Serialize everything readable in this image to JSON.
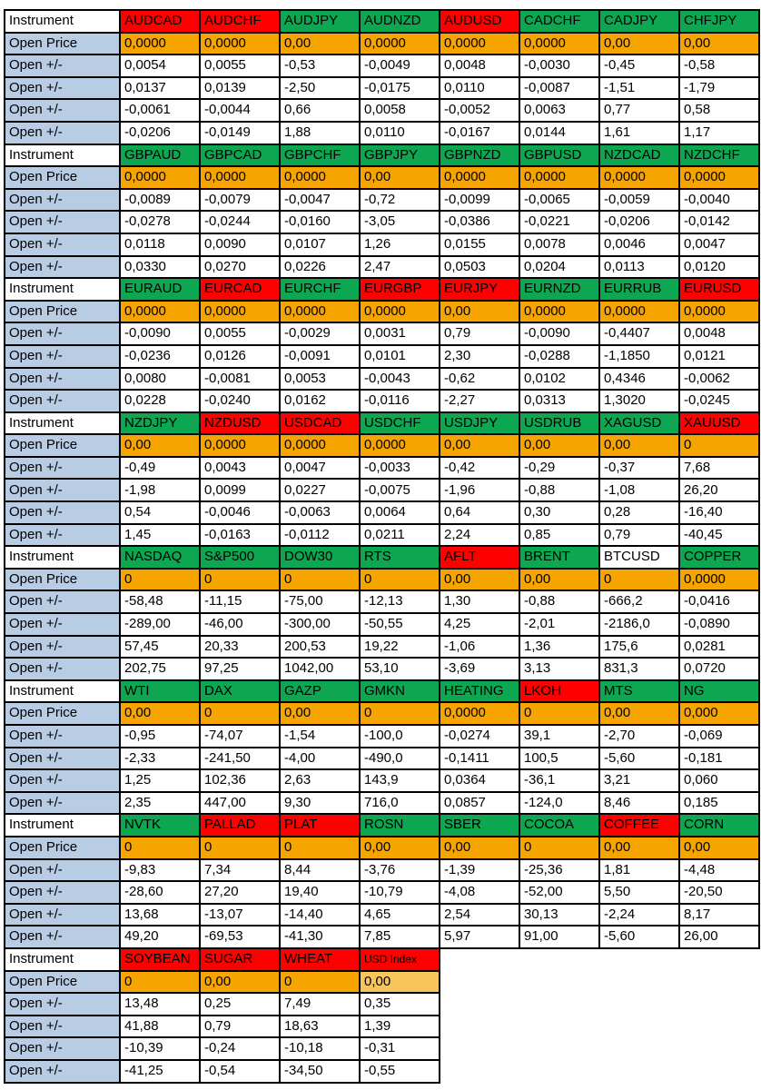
{
  "labels": {
    "instrument": "Instrument",
    "open_price": "Open Price",
    "open_delta": "Open +/-"
  },
  "colors": {
    "header_green": "#0CA750",
    "header_red": "#FF0000",
    "header_white": "#FFFFFF",
    "open_price_orange": "#F5A400",
    "open_price_light_orange": "#F8C45C",
    "label_blue": "#B8CCE4",
    "gridline_black": "#000000"
  },
  "blocks": [
    {
      "columns": [
        {
          "name": "AUDCAD",
          "color": "red"
        },
        {
          "name": "AUDCHF",
          "color": "red"
        },
        {
          "name": "AUDJPY",
          "color": "green"
        },
        {
          "name": "AUDNZD",
          "color": "green"
        },
        {
          "name": "AUDUSD",
          "color": "red"
        },
        {
          "name": "CADCHF",
          "color": "green"
        },
        {
          "name": "CADJPY",
          "color": "green"
        },
        {
          "name": "CHFJPY",
          "color": "green"
        }
      ],
      "open_price": [
        "0,0000",
        "0,0000",
        "0,00",
        "0,0000",
        "0,0000",
        "0,0000",
        "0,00",
        "0,00"
      ],
      "deltas": [
        [
          "0,0054",
          "0,0055",
          "-0,53",
          "-0,0049",
          "0,0048",
          "-0,0030",
          "-0,45",
          "-0,58"
        ],
        [
          "0,0137",
          "0,0139",
          "-2,50",
          "-0,0175",
          "0,0110",
          "-0,0087",
          "-1,51",
          "-1,79"
        ],
        [
          "-0,0061",
          "-0,0044",
          "0,66",
          "0,0058",
          "-0,0052",
          "0,0063",
          "0,77",
          "0,58"
        ],
        [
          "-0,0206",
          "-0,0149",
          "1,88",
          "0,0110",
          "-0,0167",
          "0,0144",
          "1,61",
          "1,17"
        ]
      ]
    },
    {
      "columns": [
        {
          "name": "GBPAUD",
          "color": "green"
        },
        {
          "name": "GBPCAD",
          "color": "green"
        },
        {
          "name": "GBPCHF",
          "color": "green"
        },
        {
          "name": "GBPJPY",
          "color": "green"
        },
        {
          "name": "GBPNZD",
          "color": "green"
        },
        {
          "name": "GBPUSD",
          "color": "green"
        },
        {
          "name": "NZDCAD",
          "color": "green"
        },
        {
          "name": "NZDCHF",
          "color": "green"
        }
      ],
      "open_price": [
        "0,0000",
        "0,0000",
        "0,0000",
        "0,00",
        "0,0000",
        "0,0000",
        "0,0000",
        "0,0000"
      ],
      "deltas": [
        [
          "-0,0089",
          "-0,0079",
          "-0,0047",
          "-0,72",
          "-0,0099",
          "-0,0065",
          "-0,0059",
          "-0,0040"
        ],
        [
          "-0,0278",
          "-0,0244",
          "-0,0160",
          "-3,05",
          "-0,0386",
          "-0,0221",
          "-0,0206",
          "-0,0142"
        ],
        [
          "0,0118",
          "0,0090",
          "0,0107",
          "1,26",
          "0,0155",
          "0,0078",
          "0,0046",
          "0,0047"
        ],
        [
          "0,0330",
          "0,0270",
          "0,0226",
          "2,47",
          "0,0503",
          "0,0204",
          "0,0113",
          "0,0120"
        ]
      ]
    },
    {
      "columns": [
        {
          "name": "EURAUD",
          "color": "green"
        },
        {
          "name": "EURCAD",
          "color": "red"
        },
        {
          "name": "EURCHF",
          "color": "green"
        },
        {
          "name": "EURGBP",
          "color": "red"
        },
        {
          "name": "EURJPY",
          "color": "red"
        },
        {
          "name": "EURNZD",
          "color": "green"
        },
        {
          "name": "EURRUB",
          "color": "green"
        },
        {
          "name": "EURUSD",
          "color": "red"
        }
      ],
      "open_price": [
        "0,0000",
        "0,0000",
        "0,0000",
        "0,0000",
        "0,00",
        "0,0000",
        "0,0000",
        "0,0000"
      ],
      "deltas": [
        [
          "-0,0090",
          "0,0055",
          "-0,0029",
          "0,0031",
          "0,79",
          "-0,0090",
          "-0,4407",
          "0,0048"
        ],
        [
          "-0,0236",
          "0,0126",
          "-0,0091",
          "0,0101",
          "2,30",
          "-0,0288",
          "-1,1850",
          "0,0121"
        ],
        [
          "0,0080",
          "-0,0081",
          "0,0053",
          "-0,0043",
          "-0,62",
          "0,0102",
          "0,4346",
          "-0,0062"
        ],
        [
          "0,0228",
          "-0,0240",
          "0,0162",
          "-0,0116",
          "-2,27",
          "0,0313",
          "1,3020",
          "-0,0245"
        ]
      ]
    },
    {
      "columns": [
        {
          "name": "NZDJPY",
          "color": "green"
        },
        {
          "name": "NZDUSD",
          "color": "red"
        },
        {
          "name": "USDCAD",
          "color": "red"
        },
        {
          "name": "USDCHF",
          "color": "green"
        },
        {
          "name": "USDJPY",
          "color": "green"
        },
        {
          "name": "USDRUB",
          "color": "green"
        },
        {
          "name": "XAGUSD",
          "color": "green"
        },
        {
          "name": "XAUUSD",
          "color": "red"
        }
      ],
      "open_price": [
        "0,00",
        "0,0000",
        "0,0000",
        "0,0000",
        "0,00",
        "0,00",
        "0,00",
        "0"
      ],
      "deltas": [
        [
          "-0,49",
          "0,0043",
          "0,0047",
          "-0,0033",
          "-0,42",
          "-0,29",
          "-0,37",
          "7,68"
        ],
        [
          "-1,98",
          "0,0099",
          "0,0227",
          "-0,0075",
          "-1,96",
          "-0,88",
          "-1,08",
          "26,20"
        ],
        [
          "0,54",
          "-0,0046",
          "-0,0063",
          "0,0064",
          "0,64",
          "0,30",
          "0,28",
          "-16,40"
        ],
        [
          "1,45",
          "-0,0163",
          "-0,0112",
          "0,0211",
          "2,24",
          "0,85",
          "0,79",
          "-40,45"
        ]
      ]
    },
    {
      "columns": [
        {
          "name": "NASDAQ",
          "color": "green"
        },
        {
          "name": "S&P500",
          "color": "green"
        },
        {
          "name": "DOW30",
          "color": "green"
        },
        {
          "name": "RTS",
          "color": "green"
        },
        {
          "name": "AFLT",
          "color": "red"
        },
        {
          "name": "BRENT",
          "color": "green"
        },
        {
          "name": "BTCUSD",
          "color": "white"
        },
        {
          "name": "COPPER",
          "color": "green"
        }
      ],
      "open_price": [
        "0",
        "0",
        "0",
        "0",
        "0,00",
        "0,00",
        "0",
        "0,0000"
      ],
      "deltas": [
        [
          "-58,48",
          "-11,15",
          "-75,00",
          "-12,13",
          "1,30",
          "-0,88",
          "-666,2",
          "-0,0416"
        ],
        [
          "-289,00",
          "-46,00",
          "-300,00",
          "-50,55",
          "4,25",
          "-2,01",
          "-2186,0",
          "-0,0890"
        ],
        [
          "57,45",
          "20,33",
          "200,53",
          "19,22",
          "-1,06",
          "1,36",
          "175,6",
          "0,0281"
        ],
        [
          "202,75",
          "97,25",
          "1042,00",
          "53,10",
          "-3,69",
          "3,13",
          "831,3",
          "0,0720"
        ]
      ]
    },
    {
      "columns": [
        {
          "name": "WTI",
          "color": "green"
        },
        {
          "name": "DAX",
          "color": "green"
        },
        {
          "name": "GAZP",
          "color": "green"
        },
        {
          "name": "GMKN",
          "color": "green"
        },
        {
          "name": "HEATING",
          "color": "green"
        },
        {
          "name": "LKOH",
          "color": "red"
        },
        {
          "name": "MTS",
          "color": "green"
        },
        {
          "name": "NG",
          "color": "green"
        }
      ],
      "open_price": [
        "0,00",
        "0",
        "0,00",
        "0",
        "0,0000",
        "0",
        "0,00",
        "0,000"
      ],
      "deltas": [
        [
          "-0,95",
          "-74,07",
          "-1,54",
          "-100,0",
          "-0,0274",
          "39,1",
          "-2,70",
          "-0,069"
        ],
        [
          "-2,33",
          "-241,50",
          "-4,00",
          "-490,0",
          "-0,1411",
          "100,5",
          "-5,60",
          "-0,181"
        ],
        [
          "1,25",
          "102,36",
          "2,63",
          "143,9",
          "0,0364",
          "-36,1",
          "3,21",
          "0,060"
        ],
        [
          "2,35",
          "447,00",
          "9,30",
          "716,0",
          "0,0857",
          "-124,0",
          "8,46",
          "0,185"
        ]
      ]
    },
    {
      "columns": [
        {
          "name": "NVTK",
          "color": "green"
        },
        {
          "name": "PALLAD",
          "color": "red"
        },
        {
          "name": "PLAT",
          "color": "red"
        },
        {
          "name": "ROSN",
          "color": "green"
        },
        {
          "name": "SBER",
          "color": "green"
        },
        {
          "name": "COCOA",
          "color": "green"
        },
        {
          "name": "COFFEE",
          "color": "red"
        },
        {
          "name": "CORN",
          "color": "green"
        }
      ],
      "open_price": [
        "0",
        "0",
        "0",
        "0,00",
        "0,00",
        "0",
        "0,00",
        "0,00"
      ],
      "deltas": [
        [
          "-9,83",
          "7,34",
          "8,44",
          "-3,76",
          "-1,39",
          "-25,36",
          "1,81",
          "-4,48"
        ],
        [
          "-28,60",
          "27,20",
          "19,40",
          "-10,79",
          "-4,08",
          "-52,00",
          "5,50",
          "-20,50"
        ],
        [
          "13,68",
          "-13,07",
          "-14,40",
          "4,65",
          "2,54",
          "30,13",
          "-2,24",
          "8,17"
        ],
        [
          "49,20",
          "-69,53",
          "-41,30",
          "7,85",
          "5,97",
          "91,00",
          "-5,60",
          "26,00"
        ]
      ]
    },
    {
      "columns": [
        {
          "name": "SOYBEAN",
          "color": "red"
        },
        {
          "name": "SUGAR",
          "color": "red"
        },
        {
          "name": "WHEAT",
          "color": "red"
        },
        {
          "name": "USD Index",
          "color": "red",
          "small": true,
          "price_light": true
        }
      ],
      "open_price": [
        "0",
        "0,00",
        "0",
        "0,00"
      ],
      "deltas": [
        [
          "13,48",
          "0,25",
          "7,49",
          "0,35"
        ],
        [
          "41,88",
          "0,79",
          "18,63",
          "1,39"
        ],
        [
          "-10,39",
          "-0,24",
          "-10,18",
          "-0,31"
        ],
        [
          "-41,25",
          "-0,54",
          "-34,50",
          "-0,55"
        ]
      ]
    }
  ]
}
